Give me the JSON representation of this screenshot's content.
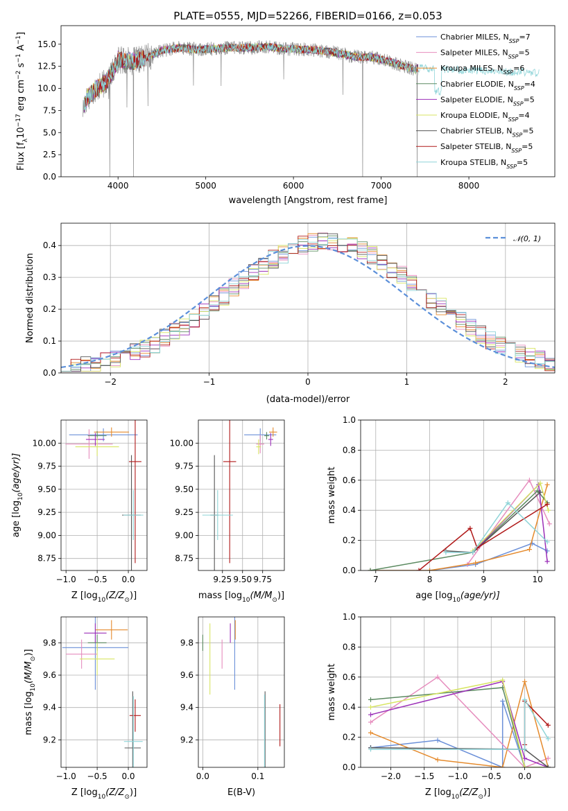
{
  "figure": {
    "title": "PLATE=0555, MJD=52266, FIBERID=0166, z=0.053"
  },
  "colors": {
    "Chabrier MILES": "#6a8fd8",
    "Salpeter MILES": "#e68cbd",
    "Kroupa MILES": "#e58a2c",
    "Chabrier ELODIE": "#5b8a60",
    "Salpeter ELODIE": "#9b2fb8",
    "Kroupa ELODIE": "#d7e562",
    "Chabrier STELIB": "#555555",
    "Salpeter STELIB": "#b01818",
    "Kroupa STELIB": "#8ed4d8",
    "data": "#8c8c8c",
    "normal": "#5b8fd9"
  },
  "chart_data": [
    {
      "id": "spectrum",
      "type": "line",
      "title": "PLATE=0555, MJD=52266, FIBERID=0166, z=0.053",
      "xlabel": "wavelength [Angstrom, rest frame]",
      "ylabel": "Flux [f",
      "ylabel_sub": "λ",
      "ylabel_mid": "10",
      "ylabel_sup1": "−17",
      "ylabel_end": " erg cm",
      "ylabel_sup2": "−2",
      "ylabel_end2": " s",
      "ylabel_sup3": "−1",
      "ylabel_end3": " A",
      "ylabel_sup4": "−1",
      "ylabel_close": "]",
      "xlim": [
        3350,
        8980
      ],
      "ylim": [
        0,
        17.1
      ],
      "xticks": [
        4000,
        5000,
        6000,
        7000,
        8000
      ],
      "yticks": [
        0.0,
        2.5,
        5.0,
        7.5,
        10.0,
        12.5,
        15.0
      ],
      "continuum": {
        "x": [
          3600,
          3650,
          3700,
          3750,
          3800,
          3850,
          3900,
          3950,
          4000,
          4100,
          4200,
          4300,
          4400,
          4500,
          4700,
          4900,
          5100,
          5300,
          5500,
          5700,
          5900,
          6100,
          6300,
          6500,
          6700,
          6900,
          7000,
          7100,
          7200,
          7300,
          7400
        ],
        "y": [
          7.6,
          9.0,
          9.5,
          10.0,
          10.2,
          10.6,
          11.3,
          12.0,
          13.3,
          13.1,
          13.1,
          13.4,
          13.8,
          14.3,
          14.6,
          14.4,
          14.5,
          14.6,
          14.6,
          14.7,
          14.5,
          14.4,
          14.3,
          14.0,
          13.6,
          13.5,
          13.3,
          13.0,
          12.7,
          12.4,
          12.1
        ]
      },
      "series": [
        {
          "name": "Chabrier MILES",
          "nssp": "7"
        },
        {
          "name": "Salpeter MILES",
          "nssp": "5"
        },
        {
          "name": "Kroupa MILES",
          "nssp": "6"
        },
        {
          "name": "Chabrier ELODIE",
          "nssp": "4"
        },
        {
          "name": "Salpeter ELODIE",
          "nssp": "5"
        },
        {
          "name": "Kroupa ELODIE",
          "nssp": "4"
        },
        {
          "name": "Chabrier STELIB",
          "nssp": "5"
        },
        {
          "name": "Salpeter STELIB",
          "nssp": "5"
        },
        {
          "name": "Kroupa STELIB",
          "nssp": "5"
        }
      ],
      "legend_label_prefix": "N",
      "legend_label_sub": "SSP",
      "legend": "upper right"
    },
    {
      "id": "residuals",
      "type": "step",
      "xlabel": "(data-model)/error",
      "ylabel": "Normed distribution",
      "xlim": [
        -2.5,
        2.5
      ],
      "ylim": [
        0,
        0.47
      ],
      "xticks": [
        -2,
        -1,
        0,
        1,
        2
      ],
      "yticks": [
        0.0,
        0.1,
        0.2,
        0.3,
        0.4
      ],
      "bin_width": 0.1,
      "reference_curve": {
        "name": "N(0,1)",
        "label": "𝒩(0, 1)",
        "style": "dashed"
      },
      "legend": "upper right"
    },
    {
      "id": "age-vs-Z",
      "type": "errorbar",
      "xlabel": "Z [log",
      "xlabel_sub": "10",
      "xlabel_end": "(Z/Z",
      "xlabel_sub2": "⊙",
      "xlabel_close": ")]",
      "ylabel": "age  [log",
      "ylabel_sub": "10",
      "ylabel_end": "(age/yr)]",
      "xlim": [
        -1.08,
        0.3
      ],
      "ylim": [
        8.62,
        10.25
      ],
      "xticks": [
        -1.0,
        -0.5,
        0.0
      ],
      "yticks": [
        8.75,
        9.0,
        9.25,
        9.5,
        9.75,
        10.0
      ],
      "points": [
        {
          "series": "Chabrier MILES",
          "x": -0.4,
          "y": 10.09,
          "xerr": 0.55,
          "yerr": 0.07
        },
        {
          "series": "Salpeter MILES",
          "x": -0.63,
          "y": 9.99,
          "xerr": 0.38,
          "yerr": 0.16
        },
        {
          "series": "Kroupa MILES",
          "x": -0.27,
          "y": 10.12,
          "xerr": 0.28,
          "yerr": 0.05
        },
        {
          "series": "Chabrier ELODIE",
          "x": -0.5,
          "y": 10.08,
          "xerr": 0.15,
          "yerr": 0.05
        },
        {
          "series": "Salpeter ELODIE",
          "x": -0.53,
          "y": 10.04,
          "xerr": 0.15,
          "yerr": 0.07
        },
        {
          "series": "Kroupa ELODIE",
          "x": -0.5,
          "y": 9.96,
          "xerr": 0.35,
          "yerr": 0.1
        },
        {
          "series": "Chabrier STELIB",
          "x": 0.05,
          "y": 9.22,
          "xerr": 0.15,
          "yerr": 0.65
        },
        {
          "series": "Salpeter STELIB",
          "x": 0.11,
          "y": 9.8,
          "xerr": 0.1,
          "yerr": 1.1
        },
        {
          "series": "Kroupa STELIB",
          "x": 0.08,
          "y": 9.22,
          "xerr": 0.16,
          "yerr": 0.27
        }
      ]
    },
    {
      "id": "age-vs-mass",
      "type": "errorbar",
      "xlabel": "mass [log",
      "xlabel_sub": "10",
      "xlabel_end": "(M/M",
      "xlabel_sub2": "⊙",
      "xlabel_close": ")]",
      "xlim": [
        8.95,
        10.02
      ],
      "ylim": [
        8.62,
        10.25
      ],
      "xticks": [
        9.25,
        9.5,
        9.75
      ],
      "yticks": [
        8.75,
        9.0,
        9.25,
        9.5,
        9.75,
        10.0
      ],
      "points": [
        {
          "series": "Chabrier MILES",
          "x": 9.72,
          "y": 10.09,
          "xerr": 0.2,
          "yerr": 0.07
        },
        {
          "series": "Salpeter MILES",
          "x": 9.72,
          "y": 9.99,
          "xerr": 0.05,
          "yerr": 0.1
        },
        {
          "series": "Kroupa MILES",
          "x": 9.88,
          "y": 10.12,
          "xerr": 0.05,
          "yerr": 0.05
        },
        {
          "series": "Chabrier ELODIE",
          "x": 9.8,
          "y": 10.08,
          "xerr": 0.03,
          "yerr": 0.04
        },
        {
          "series": "Salpeter ELODIE",
          "x": 9.85,
          "y": 10.04,
          "xerr": 0.03,
          "yerr": 0.07
        },
        {
          "series": "Kroupa ELODIE",
          "x": 9.7,
          "y": 9.96,
          "xerr": 0.03,
          "yerr": 0.08
        },
        {
          "series": "Chabrier STELIB",
          "x": 9.15,
          "y": 9.22,
          "xerr": 0.05,
          "yerr": 0.65
        },
        {
          "series": "Salpeter STELIB",
          "x": 9.34,
          "y": 9.8,
          "xerr": 0.08,
          "yerr": 1.1
        },
        {
          "series": "Kroupa STELIB",
          "x": 9.19,
          "y": 9.22,
          "xerr": 0.19,
          "yerr": 0.27
        }
      ]
    },
    {
      "id": "massweight-vs-age",
      "type": "line",
      "xlabel": "age  [log",
      "xlabel_sub": "10",
      "xlabel_end": "(age/yr)]",
      "ylabel": "mass weight",
      "xlim": [
        6.72,
        10.32
      ],
      "ylim": [
        0,
        1.0
      ],
      "xticks": [
        7,
        8,
        9,
        10
      ],
      "yticks": [
        0.0,
        0.2,
        0.4,
        0.6,
        0.8,
        1.0
      ],
      "series": [
        {
          "name": "Chabrier MILES",
          "x": [
            6.9,
            8.0,
            8.85,
            9.9,
            10.18
          ],
          "y": [
            0.0,
            0.0,
            0.04,
            0.18,
            0.13
          ]
        },
        {
          "name": "Salpeter MILES",
          "x": [
            8.7,
            9.85,
            10.22
          ],
          "y": [
            0.04,
            0.6,
            0.31
          ]
        },
        {
          "name": "Kroupa MILES",
          "x": [
            6.9,
            8.0,
            8.85,
            9.85,
            10.18
          ],
          "y": [
            0.0,
            0.0,
            0.05,
            0.14,
            0.57
          ]
        },
        {
          "name": "Chabrier ELODIE",
          "x": [
            6.9,
            8.8,
            10.0,
            10.18
          ],
          "y": [
            0.0,
            0.12,
            0.53,
            0.45
          ]
        },
        {
          "name": "Salpeter ELODIE",
          "x": [
            8.8,
            10.02,
            10.18
          ],
          "y": [
            0.12,
            0.57,
            0.06
          ]
        },
        {
          "name": "Kroupa ELODIE",
          "x": [
            8.8,
            10.05,
            10.2
          ],
          "y": [
            0.13,
            0.58,
            0.4
          ]
        },
        {
          "name": "Chabrier STELIB",
          "x": [
            8.3,
            8.8,
            10.05
          ],
          "y": [
            0.13,
            0.12,
            0.52
          ]
        },
        {
          "name": "Salpeter STELIB",
          "x": [
            7.8,
            8.75,
            8.88,
            10.18
          ],
          "y": [
            0.0,
            0.28,
            0.15,
            0.44
          ]
        },
        {
          "name": "Kroupa STELIB",
          "x": [
            8.3,
            8.8,
            9.45,
            10.18
          ],
          "y": [
            0.12,
            0.12,
            0.45,
            0.19
          ]
        }
      ]
    },
    {
      "id": "mass-vs-Z",
      "type": "errorbar",
      "xlabel": "Z [log",
      "xlabel_sub": "10",
      "xlabel_end": "(Z/Z",
      "xlabel_sub2": "⊙",
      "xlabel_close": ")]",
      "ylabel": "mass [log",
      "ylabel_sub": "10",
      "ylabel_end": "(M/M",
      "ylabel_sub2": "⊙",
      "ylabel_close": ")]",
      "xlim": [
        -1.08,
        0.3
      ],
      "ylim": [
        9.03,
        9.96
      ],
      "xticks": [
        -1.0,
        -0.5,
        0.0
      ],
      "yticks": [
        9.2,
        9.4,
        9.6,
        9.8
      ],
      "points": [
        {
          "series": "Chabrier MILES",
          "x": -0.53,
          "y": 9.77,
          "xerr": 0.53,
          "yerr": 0.26
        },
        {
          "series": "Salpeter MILES",
          "x": -0.75,
          "y": 9.73,
          "xerr": 0.25,
          "yerr": 0.09
        },
        {
          "series": "Kroupa MILES",
          "x": -0.27,
          "y": 9.88,
          "xerr": 0.26,
          "yerr": 0.06
        },
        {
          "series": "Chabrier ELODIE",
          "x": -0.5,
          "y": 9.8,
          "xerr": 0.15,
          "yerr": 0.05
        },
        {
          "series": "Salpeter ELODIE",
          "x": -0.53,
          "y": 9.86,
          "xerr": 0.18,
          "yerr": 0.06
        },
        {
          "series": "Kroupa ELODIE",
          "x": -0.5,
          "y": 9.7,
          "xerr": 0.28,
          "yerr": 0.1
        },
        {
          "series": "Chabrier STELIB",
          "x": 0.07,
          "y": 9.15,
          "xerr": 0.13,
          "yerr": 0.35
        },
        {
          "series": "Salpeter STELIB",
          "x": 0.11,
          "y": 9.35,
          "xerr": 0.09,
          "yerr": 0.1
        },
        {
          "series": "Kroupa STELIB",
          "x": 0.08,
          "y": 9.19,
          "xerr": 0.15,
          "yerr": 0.28
        }
      ]
    },
    {
      "id": "mass-vs-ebv",
      "type": "errorbar",
      "xlabel": "E(B-V)",
      "xlim": [
        -0.008,
        0.148
      ],
      "ylim": [
        9.03,
        9.96
      ],
      "xticks": [
        0.0,
        0.1
      ],
      "yticks": [
        9.2,
        9.4,
        9.6,
        9.8
      ],
      "points": [
        {
          "series": "Chabrier MILES",
          "x": 0.058,
          "y": 9.77,
          "yerr": 0.26
        },
        {
          "series": "Salpeter MILES",
          "x": 0.035,
          "y": 9.73,
          "yerr": 0.09
        },
        {
          "series": "Kroupa MILES",
          "x": 0.059,
          "y": 9.88,
          "yerr": 0.06
        },
        {
          "series": "Chabrier ELODIE",
          "x": 0.0,
          "y": 9.8,
          "yerr": 0.05
        },
        {
          "series": "Salpeter ELODIE",
          "x": 0.05,
          "y": 9.86,
          "yerr": 0.06
        },
        {
          "series": "Kroupa ELODIE",
          "x": 0.013,
          "y": 9.7,
          "yerr": 0.22
        },
        {
          "series": "Chabrier STELIB",
          "x": 0.113,
          "y": 9.2,
          "yerr": 0.3
        },
        {
          "series": "Salpeter STELIB",
          "x": 0.14,
          "y": 9.29,
          "yerr": 0.13
        },
        {
          "series": "Kroupa STELIB",
          "x": 0.112,
          "y": 9.2,
          "yerr": 0.28
        }
      ]
    },
    {
      "id": "massweight-vs-Z",
      "type": "line",
      "xlabel": "Z [log",
      "xlabel_sub": "10",
      "xlabel_end": "(Z/Z",
      "xlabel_sub2": "⊙",
      "xlabel_close": ")]",
      "ylabel": "mass weight",
      "xlim": [
        -2.45,
        0.45
      ],
      "ylim": [
        0,
        1.0
      ],
      "xticks": [
        -2.0,
        -1.5,
        -1.0,
        -0.5,
        0.0
      ],
      "yticks": [
        0.0,
        0.2,
        0.4,
        0.6,
        0.8,
        1.0
      ],
      "series": [
        {
          "name": "Chabrier MILES",
          "x": [
            -2.3,
            -2.3,
            -1.3,
            -0.33,
            -0.33,
            0.0,
            0.0,
            0.35,
            0.35
          ],
          "y": [
            0.13,
            0.13,
            0.18,
            0.0,
            0.44,
            0.0,
            0.0,
            0.0,
            0.0
          ]
        },
        {
          "name": "Salpeter MILES",
          "x": [
            -2.3,
            -1.3,
            0.0,
            0.35
          ],
          "y": [
            0.3,
            0.6,
            0.0,
            0.06
          ]
        },
        {
          "name": "Kroupa MILES",
          "x": [
            -2.3,
            -1.3,
            -0.33,
            0.0,
            0.35
          ],
          "y": [
            0.23,
            0.05,
            0.0,
            0.57,
            0.0
          ]
        },
        {
          "name": "Chabrier ELODIE",
          "x": [
            -2.3,
            -0.33,
            0.0,
            0.35
          ],
          "y": [
            0.45,
            0.53,
            0.0,
            0.0
          ]
        },
        {
          "name": "Salpeter ELODIE",
          "x": [
            -2.3,
            -0.33,
            0.0,
            0.35
          ],
          "y": [
            0.35,
            0.57,
            0.06,
            0.0
          ]
        },
        {
          "name": "Kroupa ELODIE",
          "x": [
            -2.3,
            -0.33,
            0.0,
            0.35
          ],
          "y": [
            0.4,
            0.58,
            0.0,
            0.0
          ]
        },
        {
          "name": "Chabrier STELIB",
          "x": [
            -2.3,
            0.0,
            0.35
          ],
          "y": [
            0.13,
            0.12,
            0.0
          ]
        },
        {
          "name": "Salpeter STELIB",
          "x": [
            0.0,
            0.0,
            0.35
          ],
          "y": [
            0.15,
            0.44,
            0.28
          ]
        },
        {
          "name": "Kroupa STELIB",
          "x": [
            -2.3,
            -0.0,
            -0.0,
            0.35
          ],
          "y": [
            0.12,
            0.12,
            0.45,
            0.19
          ]
        }
      ]
    }
  ]
}
